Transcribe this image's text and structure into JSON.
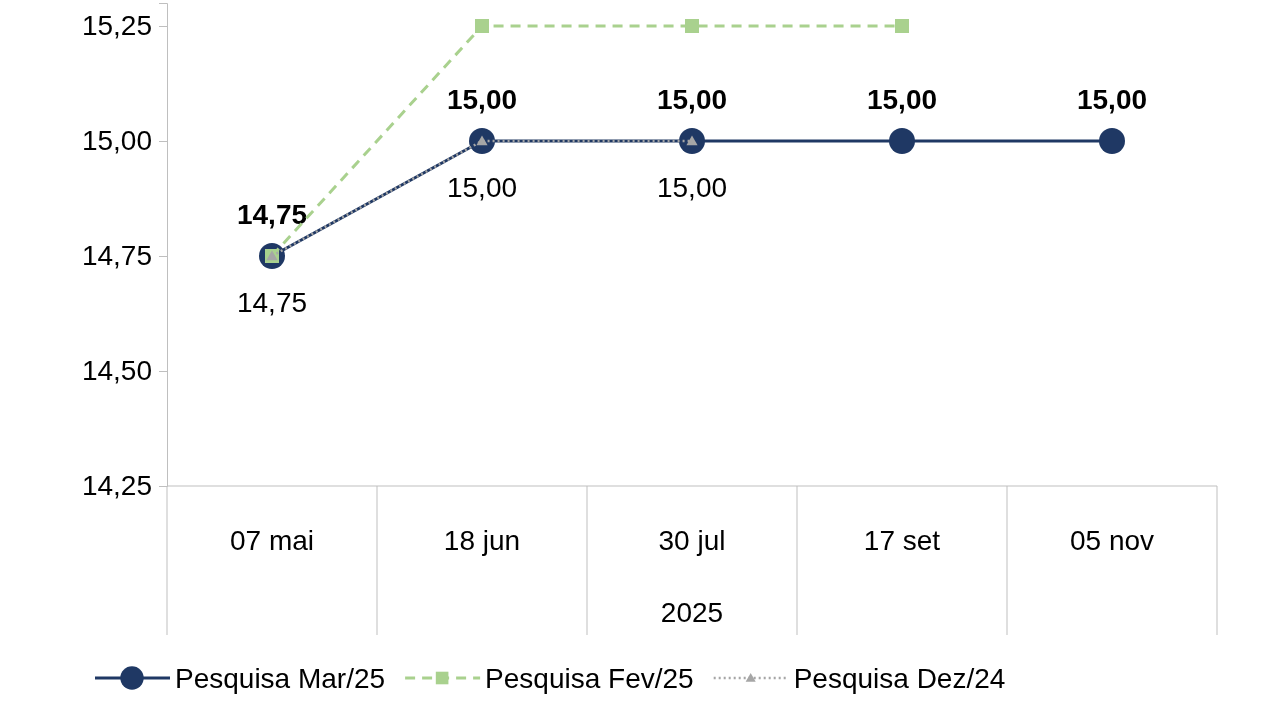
{
  "chart_data": {
    "type": "line",
    "xlabel": "2025",
    "categories": [
      "07 mai",
      "18 jun",
      "30 jul",
      "17 set",
      "05 nov"
    ],
    "ylim": [
      14.25,
      15.3
    ],
    "yticks": [
      {
        "value": 14.25,
        "label": "14,25"
      },
      {
        "value": 14.5,
        "label": "14,50"
      },
      {
        "value": 14.75,
        "label": "14,75"
      },
      {
        "value": 15,
        "label": "15,00"
      },
      {
        "value": 15.25,
        "label": "15,25"
      }
    ],
    "grid": false,
    "legend": "bottom",
    "series": [
      {
        "name": "Pesquisa Mar/25",
        "color": "#1f3864",
        "marker": "circle",
        "line_style": "solid",
        "values": [
          14.75,
          15.0,
          15.0,
          15.0,
          15.0
        ],
        "value_labels": [
          "14,75",
          "15,00",
          "15,00",
          "15,00",
          "15,00"
        ]
      },
      {
        "name": "Pesquisa Fev/25",
        "color": "#a9d18e",
        "marker": "square",
        "line_style": "dashed",
        "values": [
          14.75,
          15.25,
          15.25,
          15.25,
          null
        ]
      },
      {
        "name": "Pesquisa Dez/24",
        "color": "#a6a6a6",
        "marker": "triangle",
        "line_style": "dotted",
        "values": [
          14.75,
          15.0,
          15.0,
          null,
          null
        ],
        "value_labels": [
          "14,75",
          "15,00",
          "15,00",
          null,
          null
        ]
      }
    ]
  }
}
